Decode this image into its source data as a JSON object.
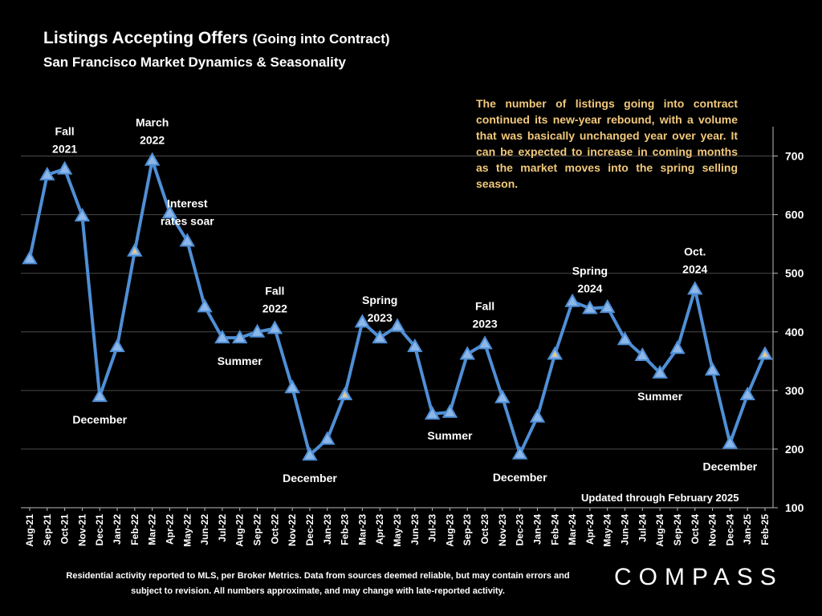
{
  "title": {
    "main": "Listings Accepting Offers",
    "sub": "(Going into Contract)"
  },
  "subtitle": "San Francisco Market Dynamics & Seasonality",
  "note": "The number of listings going into contract continued its new-year rebound, with a volume that was basically unchanged year over year. It can be expected to increase in coming months as the market moves into the spring selling season.",
  "updated": "Updated through February 2025",
  "footnote": "Residential activity reported to MLS, per Broker Metrics. Data from sources deemed reliable, but may contain errors and subject to revision. All numbers approximate, and may change with late-reported activity.",
  "logo": "COMPASS",
  "colors": {
    "line": "#4f8fd6",
    "marker": "#8cb7e8",
    "note": "#f2c97a",
    "highlight": "#f2c97a",
    "grid": "#4a4a4a",
    "background": "#000000"
  },
  "chart_data": {
    "type": "line",
    "title": "Listings Accepting Offers (Going into Contract)",
    "ylim": [
      100,
      750
    ],
    "yticks": [
      100,
      200,
      300,
      400,
      500,
      600,
      700
    ],
    "y_axis_side": "right",
    "grid": true,
    "categories": [
      "Aug-21",
      "Sep-21",
      "Oct-21",
      "Nov-21",
      "Dec-21",
      "Jan-22",
      "Feb-22",
      "Mar-22",
      "Apr-22",
      "May-22",
      "Jun-22",
      "Jul-22",
      "Aug-22",
      "Sep-22",
      "Oct-22",
      "Nov-22",
      "Dec-22",
      "Jan-23",
      "Feb-23",
      "Mar-23",
      "Apr-23",
      "May-23",
      "Jun-23",
      "Jul-23",
      "Aug-23",
      "Sep-23",
      "Oct-23",
      "Nov-23",
      "Dec-23",
      "Jan-24",
      "Feb-24",
      "Mar-24",
      "Apr-24",
      "May-24",
      "Jun-24",
      "Jul-24",
      "Aug-24",
      "Sep-24",
      "Oct-24",
      "Nov-24",
      "Dec-24",
      "Jan-25",
      "Feb-25"
    ],
    "series": [
      {
        "values": [
          525,
          668,
          678,
          598,
          290,
          375,
          538,
          693,
          603,
          555,
          443,
          390,
          390,
          400,
          406,
          305,
          190,
          217,
          293,
          417,
          390,
          410,
          375,
          260,
          263,
          362,
          380,
          288,
          192,
          255,
          362,
          452,
          440,
          442,
          387,
          360,
          330,
          372,
          473,
          335,
          210,
          293,
          362
        ]
      }
    ],
    "highlighted_points": [
      "Feb-22",
      "Feb-23",
      "Feb-24",
      "Feb-25"
    ],
    "annotations": [
      {
        "label": "Fall\n2021",
        "at": "Oct-21",
        "anchor": "above"
      },
      {
        "label": "December",
        "at": "Dec-21",
        "anchor": "below"
      },
      {
        "label": "March\n2022",
        "at": "Mar-22",
        "anchor": "above"
      },
      {
        "label": "Interest\nrates soar",
        "at": "May-22",
        "anchor": "above"
      },
      {
        "label": "Summer",
        "at": "Aug-22",
        "anchor": "below"
      },
      {
        "label": "Fall\n2022",
        "at": "Oct-22",
        "anchor": "above"
      },
      {
        "label": "December",
        "at": "Dec-22",
        "anchor": "below"
      },
      {
        "label": "Spring\n2023",
        "at": "Apr-23",
        "anchor": "above"
      },
      {
        "label": "Summer",
        "at": "Aug-23",
        "anchor": "below"
      },
      {
        "label": "Fall\n2023",
        "at": "Oct-23",
        "anchor": "above"
      },
      {
        "label": "December",
        "at": "Dec-23",
        "anchor": "below"
      },
      {
        "label": "Spring\n2024",
        "at": "Apr-24",
        "anchor": "above"
      },
      {
        "label": "Summer",
        "at": "Aug-24",
        "anchor": "below"
      },
      {
        "label": "Oct.\n2024",
        "at": "Oct-24",
        "anchor": "above"
      },
      {
        "label": "December",
        "at": "Dec-24",
        "anchor": "below"
      }
    ]
  }
}
